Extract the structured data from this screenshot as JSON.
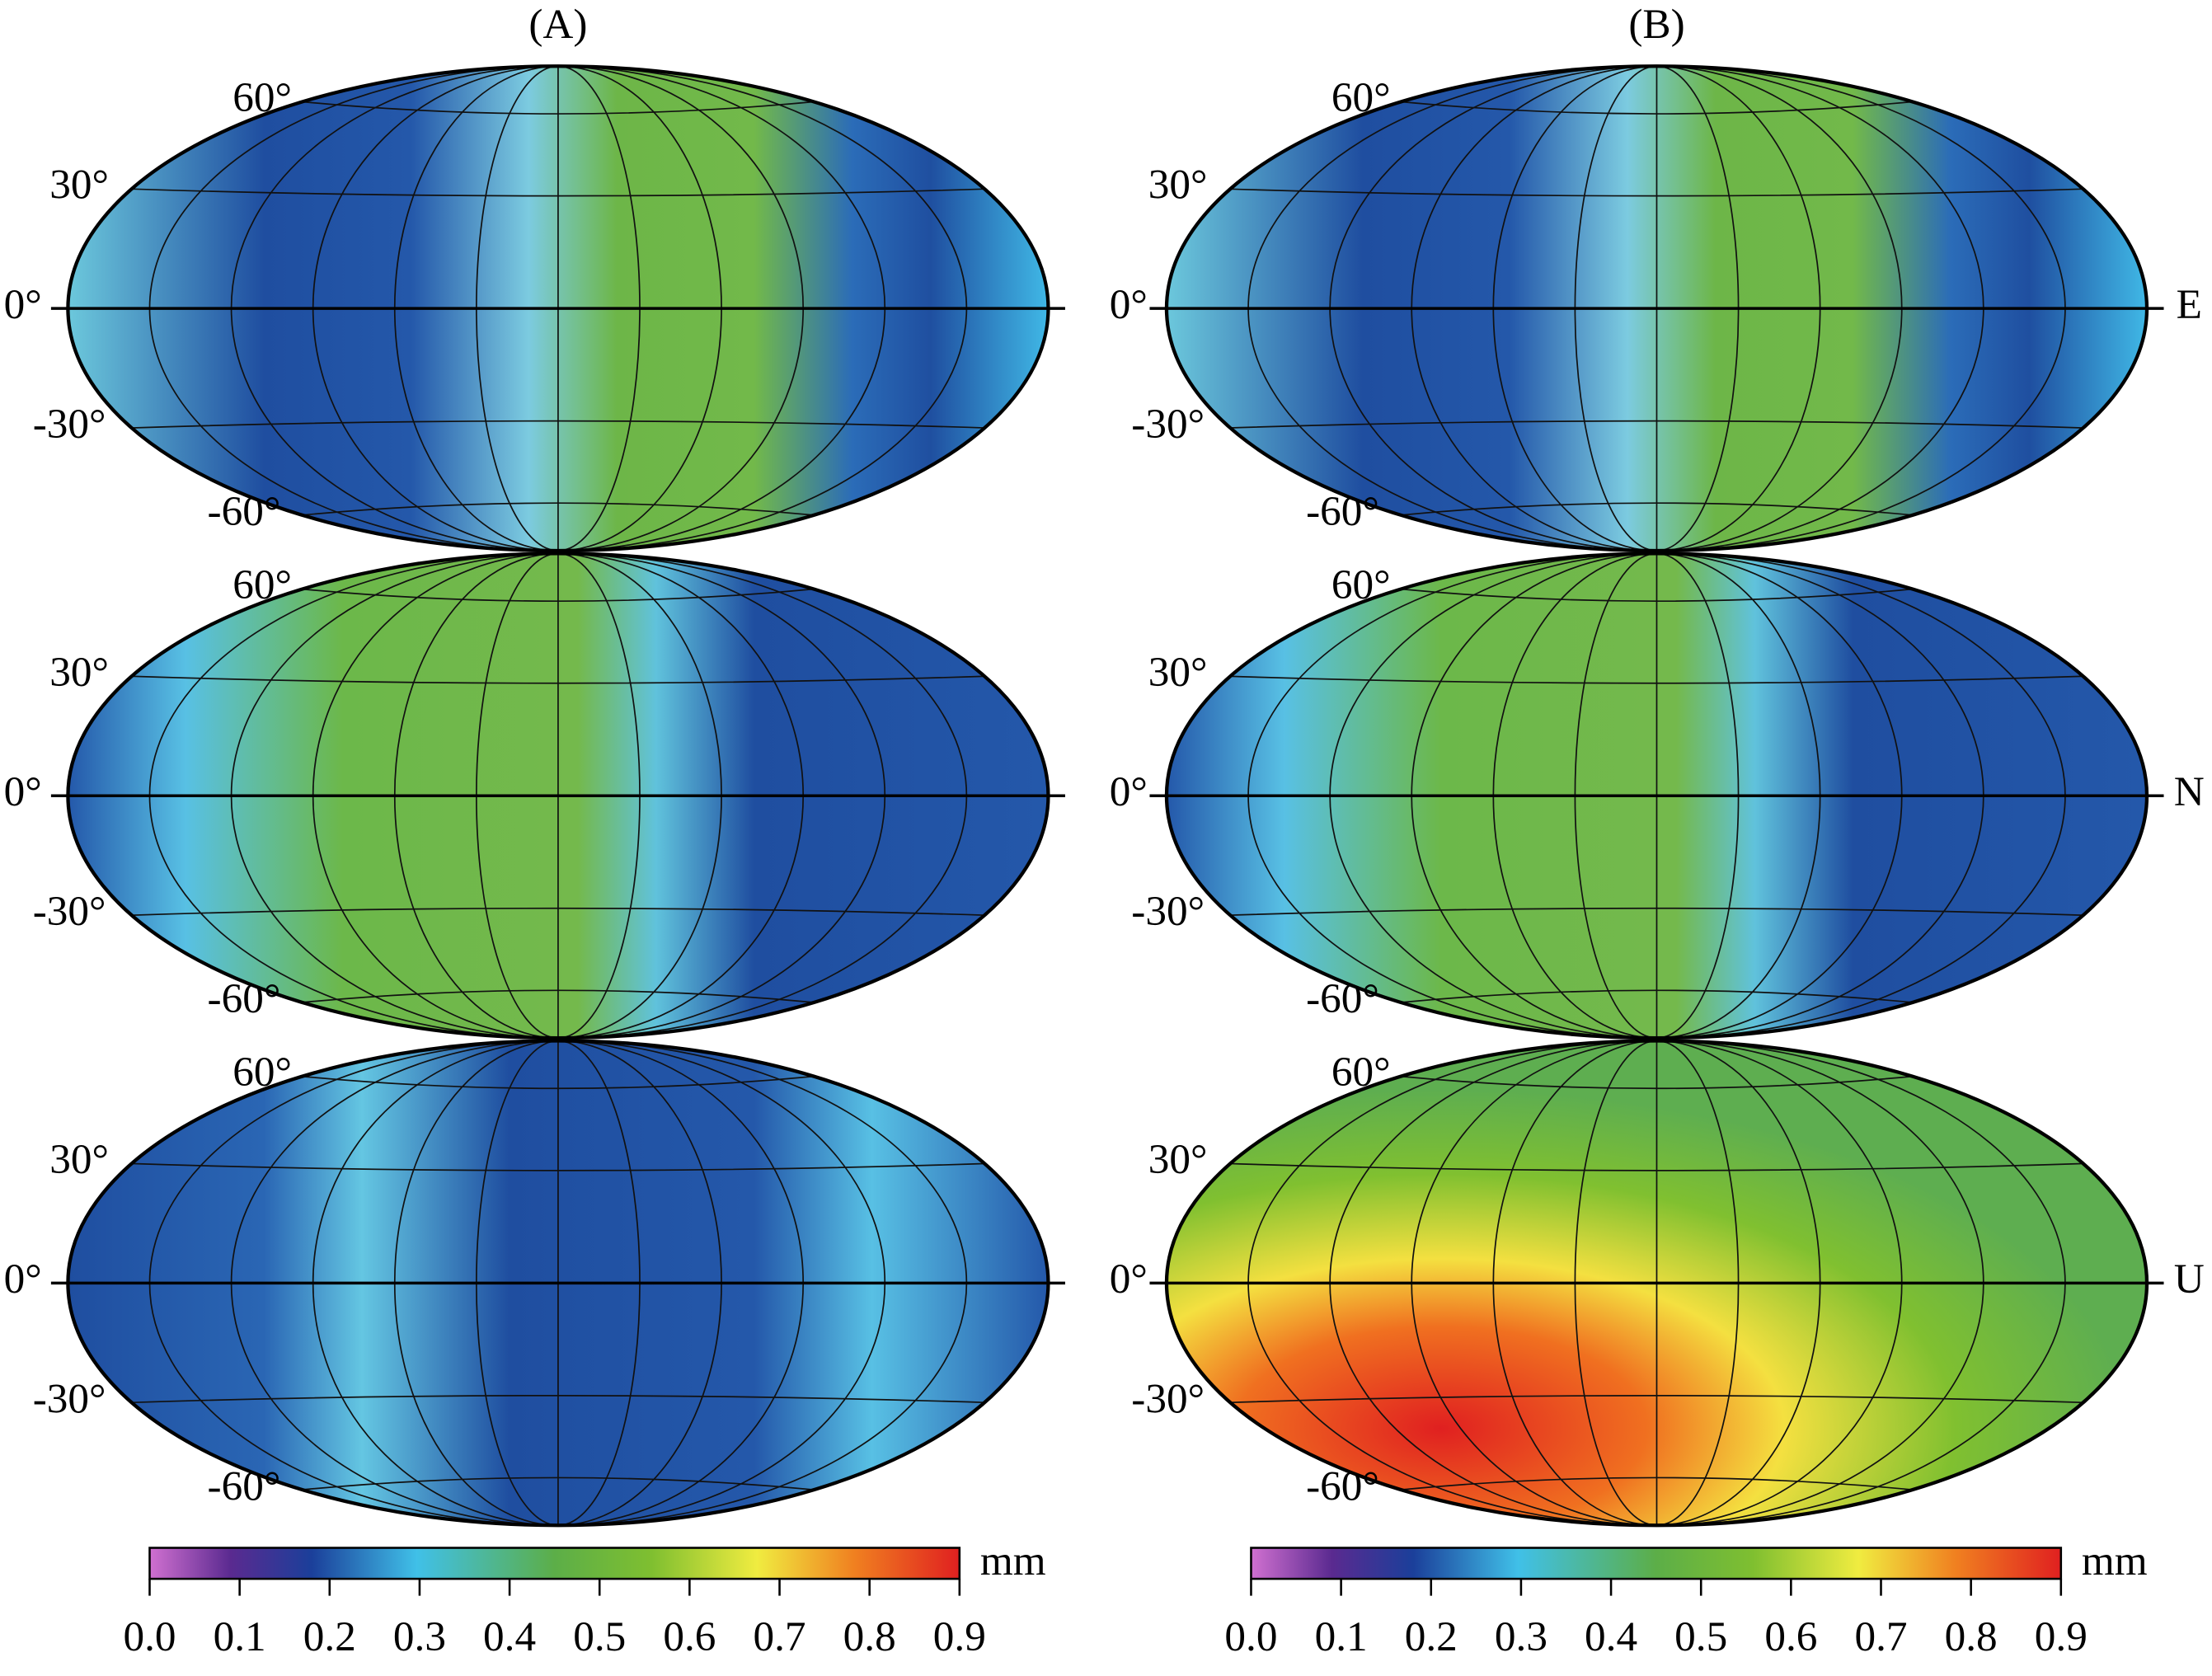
{
  "panel_titles": [
    "(A)",
    "(B)"
  ],
  "lat_labels": [
    "60°",
    "30°",
    "0°",
    "-30°",
    "-60°"
  ],
  "components": [
    "E",
    "N",
    "U"
  ],
  "colorbar": {
    "unit": "mm",
    "ticks": [
      "0.0",
      "0.1",
      "0.2",
      "0.3",
      "0.4",
      "0.5",
      "0.6",
      "0.7",
      "0.8",
      "0.9"
    ]
  }
}
